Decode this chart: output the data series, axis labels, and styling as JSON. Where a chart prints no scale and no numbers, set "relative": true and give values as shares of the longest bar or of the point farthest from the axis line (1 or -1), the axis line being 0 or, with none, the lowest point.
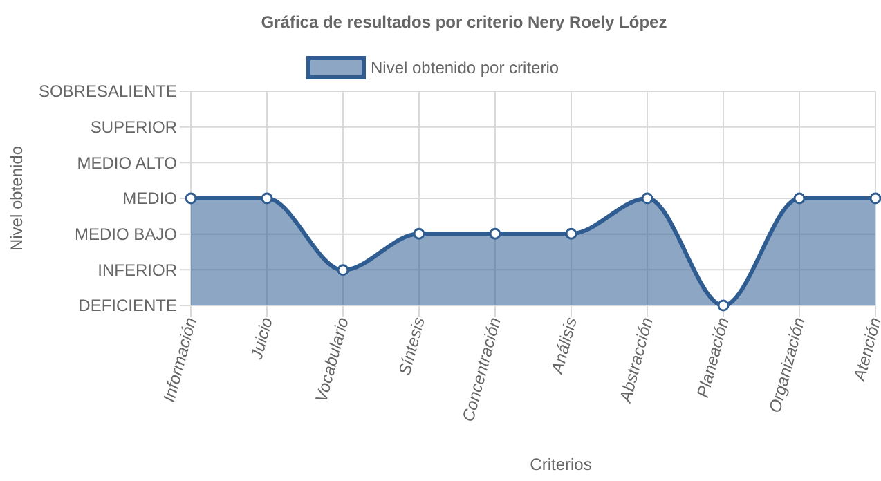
{
  "chart_data": {
    "type": "area",
    "title": "Gráfica de resultados por criterio Nery Roely López",
    "xlabel": "Criterios",
    "annotations": [
      "Nivel obtenido"
    ],
    "categories": [
      "Información",
      "Juicio",
      "Vocabulario",
      "Síntesis",
      "Concentración",
      "Análisis",
      "Abstracción",
      "Planeación",
      "Organización",
      "Atención"
    ],
    "series": [
      {
        "name": "Nivel obtenido por criterio",
        "color": "#2f5d92",
        "values": [
          1,
          1,
          0.33,
          0.67,
          0.67,
          0.67,
          1,
          0,
          1,
          1
        ]
      }
    ],
    "relative": true,
    "y_categories": [
      "SOBRESALIENTE",
      "SUPERIOR",
      "MEDIO ALTO",
      "MEDIO",
      "MEDIO BAJO",
      "INFERIOR",
      "DEFICIENTE"
    ],
    "grid": true,
    "legend": "top",
    "marker": "circle"
  }
}
